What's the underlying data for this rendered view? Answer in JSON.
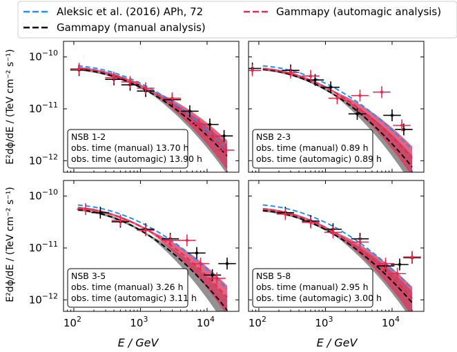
{
  "legend": {
    "entries": [
      {
        "label": "Aleksic et al. (2016) APh, 72",
        "color": "#1f8fff",
        "style": "dashed"
      },
      {
        "label": "Gammapy (automagic analysis)",
        "color": "#e8294f",
        "style": "dashed"
      },
      {
        "label": "Gammapy (manual analysis)",
        "color": "#000000",
        "style": "dashed"
      }
    ]
  },
  "axes": {
    "xlabel": "E / GeV",
    "ylabel": "E²dϕ/dE / (TeV cm⁻² s⁻¹)",
    "xticks": [
      {
        "value": 100,
        "base": "10",
        "exp": "2"
      },
      {
        "value": 1000,
        "base": "10",
        "exp": "3"
      },
      {
        "value": 10000,
        "base": "10",
        "exp": "4"
      }
    ],
    "yticks": [
      {
        "value": 1e-10,
        "base": "10",
        "exp": "−10"
      },
      {
        "value": 1e-11,
        "base": "10",
        "exp": "−11"
      },
      {
        "value": 1e-12,
        "base": "10",
        "exp": "−12"
      }
    ]
  },
  "colors": {
    "aleksic": "#1f8fff",
    "auto": "#e8294f",
    "auto_band": "#d9335c",
    "manual": "#000000",
    "manual_band": "#7f7f7f"
  },
  "chart_data": [
    {
      "type": "line",
      "panel": "NSB 1-2",
      "xscale": "log",
      "yscale": "log",
      "xlim": [
        70,
        30000
      ],
      "ylim": [
        6e-13,
        2e-10
      ],
      "info": [
        "NSB 1-2",
        "obs. time (manual) 13.70 h",
        "obs. time (automagic) 13.90 h"
      ],
      "models": {
        "aleksic": {
          "n": 6.8e-11,
          "a": 0.28
        },
        "auto": {
          "n": 6.2e-11,
          "a": 0.28
        },
        "manual": {
          "n": 5.8e-11,
          "a": 0.29
        }
      },
      "manual_points": [
        [
          120,
          5.6e-11
        ],
        [
          400,
          3.7e-11
        ],
        [
          700,
          2.9e-11
        ],
        [
          1200,
          2.2e-11
        ],
        [
          3000,
          1.5e-11
        ],
        [
          5500,
          9e-12
        ],
        [
          11000,
          5e-12
        ],
        [
          18000,
          3e-12
        ]
      ],
      "auto_points": [
        [
          120,
          5.9e-11
        ],
        [
          400,
          4e-11
        ],
        [
          700,
          3.3e-11
        ],
        [
          1200,
          2.5e-11
        ],
        [
          3000,
          1.6e-11
        ],
        [
          7500,
          5e-12
        ],
        [
          12000,
          3e-12
        ],
        [
          19000,
          1.6e-12
        ]
      ]
    },
    {
      "type": "line",
      "panel": "NSB 2-3",
      "xscale": "log",
      "yscale": "log",
      "xlim": [
        70,
        30000
      ],
      "ylim": [
        6e-13,
        2e-10
      ],
      "info": [
        "NSB 2-3",
        "obs. time (manual) 0.89 h",
        "obs. time (automagic) 0.89 h"
      ],
      "models": {
        "aleksic": {
          "n": 6.8e-11,
          "a": 0.28
        },
        "auto": {
          "n": 6e-11,
          "a": 0.3
        },
        "manual": {
          "n": 5.8e-11,
          "a": 0.33
        }
      },
      "manual_points": [
        [
          80,
          6e-11
        ],
        [
          300,
          5.5e-11
        ],
        [
          700,
          3.6e-11
        ],
        [
          1200,
          2.6e-11
        ],
        [
          3000,
          8e-12
        ],
        [
          10000,
          7.5e-12
        ],
        [
          15000,
          4e-12
        ]
      ],
      "auto_points": [
        [
          80,
          5.5e-11
        ],
        [
          300,
          5e-11
        ],
        [
          600,
          4.3e-11
        ],
        [
          1500,
          1.6e-11
        ],
        [
          3300,
          1.8e-11
        ],
        [
          7000,
          2.1e-11
        ],
        [
          14000,
          4.8e-12
        ]
      ]
    },
    {
      "type": "line",
      "panel": "NSB 3-5",
      "xscale": "log",
      "yscale": "log",
      "xlim": [
        70,
        30000
      ],
      "ylim": [
        6e-13,
        2e-10
      ],
      "info": [
        "NSB 3-5",
        "obs. time (manual) 3.26 h",
        "obs. time (automagic) 3.11 h"
      ],
      "models": {
        "aleksic": {
          "n": 6.8e-11,
          "a": 0.28
        },
        "auto": {
          "n": 6e-11,
          "a": 0.3
        },
        "manual": {
          "n": 5.5e-11,
          "a": 0.34
        }
      },
      "manual_points": [
        [
          250,
          4.8e-11
        ],
        [
          500,
          3.2e-11
        ],
        [
          1200,
          2.3e-11
        ],
        [
          2800,
          1.5e-11
        ],
        [
          7000,
          8e-12
        ],
        [
          12000,
          3e-12
        ],
        [
          20000,
          5e-12
        ]
      ],
      "auto_points": [
        [
          150,
          5.6e-11
        ],
        [
          500,
          3.4e-11
        ],
        [
          1200,
          2.2e-11
        ],
        [
          2800,
          1.4e-11
        ],
        [
          5000,
          1.4e-11
        ],
        [
          8000,
          5e-12
        ],
        [
          14000,
          2.6e-12
        ]
      ]
    },
    {
      "type": "line",
      "panel": "NSB 5-8",
      "xscale": "log",
      "yscale": "log",
      "xlim": [
        70,
        30000
      ],
      "ylim": [
        6e-13,
        2e-10
      ],
      "info": [
        "NSB 5-8",
        "obs. time (manual) 2.95 h",
        "obs. time (automagic) 3.00 h"
      ],
      "models": {
        "aleksic": {
          "n": 6.8e-11,
          "a": 0.28
        },
        "auto": {
          "n": 5.7e-11,
          "a": 0.3
        },
        "manual": {
          "n": 5.3e-11,
          "a": 0.31
        }
      },
      "manual_points": [
        [
          250,
          4.8e-11
        ],
        [
          600,
          3.3e-11
        ],
        [
          1300,
          2.3e-11
        ],
        [
          3300,
          1.5e-11
        ],
        [
          8000,
          4.5e-12
        ],
        [
          13000,
          4.8e-12
        ],
        [
          20000,
          6.5e-12
        ]
      ],
      "auto_points": [
        [
          250,
          4.5e-11
        ],
        [
          600,
          3.1e-11
        ],
        [
          1300,
          2e-11
        ],
        [
          3300,
          1.3e-11
        ],
        [
          8000,
          5e-12
        ],
        [
          12000,
          3.2e-12
        ],
        [
          20000,
          6.7e-12
        ]
      ]
    }
  ]
}
